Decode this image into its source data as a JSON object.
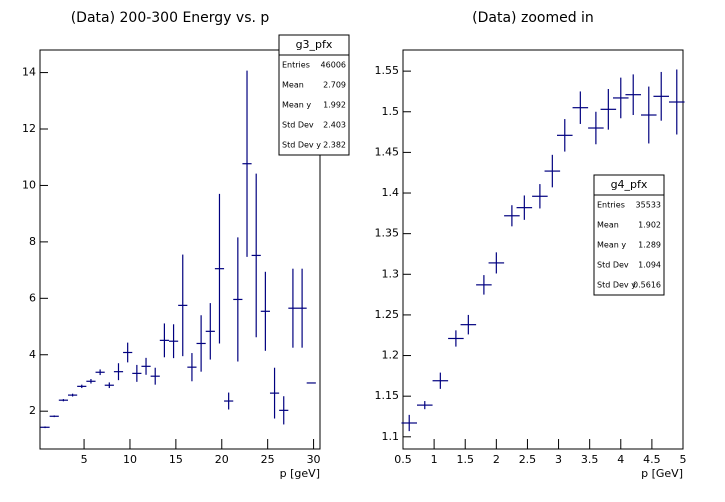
{
  "chart_data": [
    {
      "type": "errorbar",
      "title": "(Data) 200-300 Energy vs. p",
      "x_label": "p [geV]",
      "x": [
        0.75,
        1.75,
        2.75,
        3.75,
        4.75,
        5.75,
        6.75,
        7.75,
        8.75,
        9.75,
        10.75,
        11.75,
        12.75,
        13.75,
        14.75,
        15.75,
        16.75,
        17.75,
        18.75,
        19.75,
        20.75,
        21.75,
        22.75,
        23.75,
        24.75,
        25.75,
        26.75,
        27.75,
        28.75,
        29.75
      ],
      "values": [
        1.43,
        1.82,
        2.39,
        2.57,
        2.88,
        3.06,
        3.38,
        2.92,
        3.4,
        4.08,
        3.34,
        3.59,
        3.24,
        4.51,
        4.48,
        5.75,
        3.56,
        4.4,
        4.83,
        7.05,
        2.36,
        5.96,
        10.77,
        7.52,
        5.54,
        2.64,
        2.03,
        5.65,
        5.65,
        3.0
      ],
      "errors": [
        0.03,
        0.03,
        0.04,
        0.05,
        0.06,
        0.08,
        0.1,
        0.1,
        0.3,
        0.35,
        0.3,
        0.3,
        0.3,
        0.6,
        0.6,
        1.8,
        0.5,
        1.0,
        1.0,
        2.65,
        0.3,
        2.2,
        3.3,
        2.9,
        1.4,
        0.9,
        0.5,
        1.4,
        1.4,
        0
      ],
      "color": "#00007f",
      "xlim": [
        0.2,
        30.7
      ],
      "ylim": [
        0.66,
        14.8
      ],
      "xticks": [
        5,
        10,
        15,
        20,
        25,
        30
      ],
      "yticks": [
        2,
        4,
        6,
        8,
        10,
        12,
        14
      ],
      "stats": {
        "title": "g3_pfx",
        "rows": [
          [
            "Entries",
            46006
          ],
          [
            "Mean",
            2.709
          ],
          [
            "Mean y",
            1.992
          ],
          [
            "Std Dev",
            2.403
          ],
          [
            "Std Dev y",
            2.382
          ]
        ]
      }
    },
    {
      "type": "errorbar",
      "title": "(Data) zoomed in",
      "x_label": "p [GeV]",
      "x": [
        0.6,
        0.85,
        1.1,
        1.35,
        1.55,
        1.8,
        2.0,
        2.25,
        2.45,
        2.7,
        2.9,
        3.1,
        3.35,
        3.6,
        3.8,
        4.0,
        4.2,
        4.45,
        4.65,
        4.9
      ],
      "values": [
        1.117,
        1.139,
        1.169,
        1.221,
        1.238,
        1.287,
        1.314,
        1.372,
        1.382,
        1.396,
        1.427,
        1.471,
        1.505,
        1.48,
        1.503,
        1.517,
        1.521,
        1.496,
        1.519,
        1.512
      ],
      "errors": [
        0.01,
        0.005,
        0.01,
        0.01,
        0.012,
        0.012,
        0.013,
        0.013,
        0.015,
        0.015,
        0.02,
        0.02,
        0.02,
        0.02,
        0.025,
        0.025,
        0.025,
        0.035,
        0.03,
        0.04
      ],
      "color": "#00007f",
      "xlim": [
        0.5,
        5
      ],
      "ylim": [
        1.085,
        1.576
      ],
      "xticks": [
        0.5,
        1,
        1.5,
        2,
        2.5,
        3,
        3.5,
        4,
        4.5,
        5
      ],
      "yticks": [
        1.1,
        1.15,
        1.2,
        1.25,
        1.3,
        1.35,
        1.4,
        1.45,
        1.5,
        1.55
      ],
      "stats": {
        "title": "g4_pfx",
        "rows": [
          [
            "Entries",
            35533
          ],
          [
            "Mean",
            1.902
          ],
          [
            "Mean y",
            1.289
          ],
          [
            "Std Dev",
            1.094
          ],
          [
            "Std Dev y",
            0.5616
          ]
        ]
      }
    }
  ]
}
